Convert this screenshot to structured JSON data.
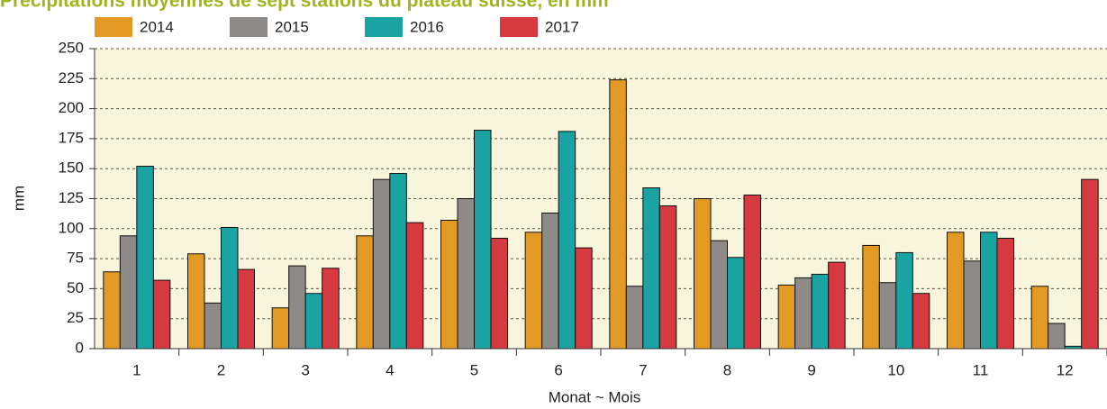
{
  "chart_data": {
    "type": "bar",
    "title": "Précipitations moyennes de sept stations du plateau suisse, en mm",
    "x_label": "Monat  ~  Mois",
    "y_label": "mm",
    "categories": [
      "1",
      "2",
      "3",
      "4",
      "5",
      "6",
      "7",
      "8",
      "9",
      "10",
      "11",
      "12"
    ],
    "series": [
      {
        "name": "2014",
        "color": "#e39a25",
        "values": [
          64,
          79,
          34,
          94,
          107,
          97,
          224,
          125,
          53,
          86,
          97,
          52
        ]
      },
      {
        "name": "2015",
        "color": "#8e8a87",
        "values": [
          94,
          38,
          69,
          141,
          125,
          113,
          52,
          90,
          59,
          55,
          73,
          21
        ]
      },
      {
        "name": "2016",
        "color": "#1aa3a3",
        "values": [
          152,
          101,
          46,
          146,
          182,
          181,
          134,
          76,
          62,
          80,
          97,
          2
        ]
      },
      {
        "name": "2017",
        "color": "#d6393f",
        "values": [
          57,
          66,
          67,
          105,
          92,
          84,
          119,
          128,
          72,
          46,
          92,
          141
        ]
      }
    ],
    "ylim": [
      0,
      250
    ],
    "yticks": [
      0,
      25,
      50,
      75,
      100,
      125,
      150,
      175,
      200,
      225,
      250
    ],
    "grid": true
  }
}
